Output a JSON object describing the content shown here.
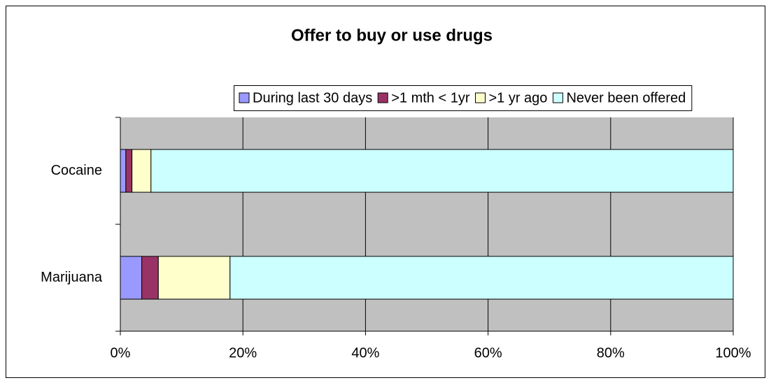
{
  "chart_data": {
    "type": "stacked-bar-horizontal",
    "title": "Offer to buy or use drugs",
    "categories": [
      "Cocaine",
      "Marijuana"
    ],
    "series": [
      {
        "name": "During last 30 days",
        "color": "#9999ff",
        "values": [
          0.9,
          3.5
        ]
      },
      {
        "name": ">1 mth < 1yr",
        "color": "#993366",
        "values": [
          1.0,
          2.7
        ]
      },
      {
        "name": ">1 yr ago",
        "color": "#ffffcc",
        "values": [
          3.1,
          11.7
        ]
      },
      {
        "name": "Never been offered",
        "color": "#ccffff",
        "values": [
          95.0,
          82.1
        ]
      }
    ],
    "xlim": [
      0,
      100
    ],
    "xticks": [
      {
        "value": 0,
        "label": "0%"
      },
      {
        "value": 20,
        "label": "20%"
      },
      {
        "value": 40,
        "label": "40%"
      },
      {
        "value": 60,
        "label": "60%"
      },
      {
        "value": 80,
        "label": "80%"
      },
      {
        "value": 100,
        "label": "100%"
      }
    ],
    "grid": true,
    "legend": "top"
  }
}
